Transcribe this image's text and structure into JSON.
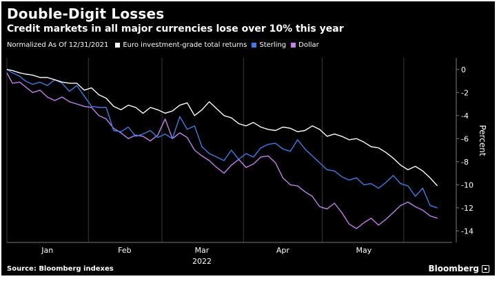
{
  "header": {
    "title": "Double-Digit Losses",
    "subtitle": "Credit markets in all major currencies lose over 10% this year"
  },
  "legend": {
    "note": "Normalized As Of 12/31/2021",
    "items": [
      {
        "label": "Euro investment-grade total returns",
        "color": "#ffffff"
      },
      {
        "label": "Sterling",
        "color": "#3c7ee8"
      },
      {
        "label": "Dollar",
        "color": "#c67ff0"
      }
    ]
  },
  "footer": {
    "source": "Source: Bloomberg indexes",
    "brand": "Bloomberg"
  },
  "chart_data": {
    "type": "line",
    "ylabel": "Percent",
    "xlabel": "2022",
    "ylim": [
      -15,
      1
    ],
    "yticks": [
      0,
      -2,
      -4,
      -6,
      -8,
      -10,
      -12,
      -14
    ],
    "ytick_labels": [
      "0",
      "-2",
      "-4",
      "-6",
      "-8",
      "-10",
      "-12",
      "-14"
    ],
    "x_month_ticks": [
      "Jan",
      "Feb",
      "Mar",
      "Apr",
      "May"
    ],
    "x_range_weeks": [
      0,
      24.2
    ],
    "grid": "vertical",
    "series": [
      {
        "name": "Euro investment-grade total returns",
        "color": "#ffffff",
        "x": [
          0,
          0.3,
          0.7,
          1.0,
          1.4,
          1.8,
          2.2,
          2.6,
          3.0,
          3.4,
          3.8,
          4.2,
          4.6,
          5.0,
          5.4,
          5.8,
          6.2,
          6.6,
          7.0,
          7.4,
          7.8,
          8.2,
          8.6,
          9.0,
          9.4,
          9.8,
          10.2,
          10.6,
          11.0,
          11.4,
          11.8,
          12.2,
          12.6,
          13.0,
          13.4,
          13.8,
          14.2,
          14.6,
          15.0,
          15.4,
          15.8,
          16.2,
          16.6,
          17.0,
          17.4,
          17.8,
          18.2,
          18.6,
          19.0,
          19.4,
          19.8,
          20.2,
          20.6,
          21.0,
          21.4,
          21.8,
          22.2,
          22.6,
          23.0,
          23.4
        ],
        "y": [
          0.0,
          -0.1,
          -0.3,
          -0.4,
          -0.5,
          -0.7,
          -0.7,
          -0.9,
          -1.1,
          -1.2,
          -1.2,
          -1.8,
          -1.6,
          -2.2,
          -2.5,
          -3.2,
          -3.5,
          -3.1,
          -3.3,
          -3.8,
          -3.3,
          -3.5,
          -3.8,
          -3.6,
          -3.1,
          -2.9,
          -4.0,
          -3.5,
          -2.8,
          -3.4,
          -4.0,
          -4.2,
          -4.7,
          -4.9,
          -4.6,
          -5.0,
          -5.2,
          -5.3,
          -5.0,
          -5.1,
          -5.4,
          -5.3,
          -4.9,
          -5.2,
          -5.8,
          -5.6,
          -5.8,
          -6.1,
          -6.0,
          -6.3,
          -6.7,
          -6.8,
          -7.2,
          -7.7,
          -8.3,
          -8.7,
          -8.4,
          -8.8,
          -9.4,
          -10.1
        ]
      },
      {
        "name": "Sterling",
        "color": "#3c7ee8",
        "x": [
          0,
          0.3,
          0.7,
          1.0,
          1.4,
          1.8,
          2.2,
          2.6,
          3.0,
          3.4,
          3.8,
          4.2,
          4.6,
          5.0,
          5.4,
          5.8,
          6.2,
          6.6,
          7.0,
          7.4,
          7.8,
          8.2,
          8.6,
          9.0,
          9.4,
          9.8,
          10.2,
          10.6,
          11.0,
          11.4,
          11.8,
          12.2,
          12.6,
          13.0,
          13.4,
          13.8,
          14.2,
          14.6,
          15.0,
          15.4,
          15.8,
          16.2,
          16.6,
          17.0,
          17.4,
          17.8,
          18.2,
          18.6,
          19.0,
          19.4,
          19.8,
          20.2,
          20.6,
          21.0,
          21.4,
          21.8,
          22.2,
          22.6,
          23.0,
          23.4
        ],
        "y": [
          0.0,
          -0.3,
          -0.6,
          -1.0,
          -1.3,
          -1.1,
          -1.4,
          -0.9,
          -1.2,
          -1.9,
          -1.4,
          -2.3,
          -3.2,
          -3.3,
          -3.3,
          -5.3,
          -5.4,
          -5.0,
          -5.8,
          -5.6,
          -5.3,
          -5.9,
          -5.6,
          -6.0,
          -4.1,
          -5.2,
          -4.9,
          -6.7,
          -7.3,
          -7.6,
          -7.9,
          -7.0,
          -7.8,
          -7.3,
          -7.6,
          -6.8,
          -6.5,
          -6.4,
          -6.9,
          -7.1,
          -6.1,
          -6.9,
          -7.5,
          -8.1,
          -8.7,
          -8.8,
          -9.3,
          -9.6,
          -9.4,
          -10.0,
          -9.9,
          -10.3,
          -9.8,
          -9.2,
          -9.9,
          -10.1,
          -11.0,
          -10.3,
          -11.8,
          -12.0
        ]
      },
      {
        "name": "Dollar",
        "color": "#c67ff0",
        "x": [
          0,
          0.3,
          0.7,
          1.0,
          1.4,
          1.8,
          2.2,
          2.6,
          3.0,
          3.4,
          3.8,
          4.2,
          4.6,
          5.0,
          5.4,
          5.8,
          6.2,
          6.6,
          7.0,
          7.4,
          7.8,
          8.2,
          8.6,
          9.0,
          9.4,
          9.8,
          10.2,
          10.6,
          11.0,
          11.4,
          11.8,
          12.2,
          12.6,
          13.0,
          13.4,
          13.8,
          14.2,
          14.6,
          15.0,
          15.4,
          15.8,
          16.2,
          16.6,
          17.0,
          17.4,
          17.8,
          18.2,
          18.6,
          19.0,
          19.4,
          19.8,
          20.2,
          20.6,
          21.0,
          21.4,
          21.8,
          22.2,
          22.6,
          23.0,
          23.4
        ],
        "y": [
          -0.3,
          -1.2,
          -1.1,
          -1.5,
          -2.0,
          -1.8,
          -2.4,
          -2.7,
          -2.4,
          -2.8,
          -3.0,
          -3.2,
          -3.3,
          -4.0,
          -4.3,
          -5.1,
          -5.5,
          -6.0,
          -5.7,
          -5.8,
          -6.2,
          -5.7,
          -4.3,
          -6.0,
          -5.5,
          -5.9,
          -7.0,
          -7.5,
          -7.9,
          -8.5,
          -9.0,
          -8.3,
          -7.8,
          -8.5,
          -8.2,
          -7.6,
          -7.5,
          -8.1,
          -9.4,
          -10.0,
          -10.1,
          -10.6,
          -11.0,
          -11.9,
          -12.1,
          -11.6,
          -12.4,
          -13.4,
          -13.8,
          -13.3,
          -12.9,
          -13.5,
          -13.0,
          -12.4,
          -11.8,
          -11.5,
          -11.9,
          -12.2,
          -12.7,
          -12.9
        ]
      }
    ]
  }
}
